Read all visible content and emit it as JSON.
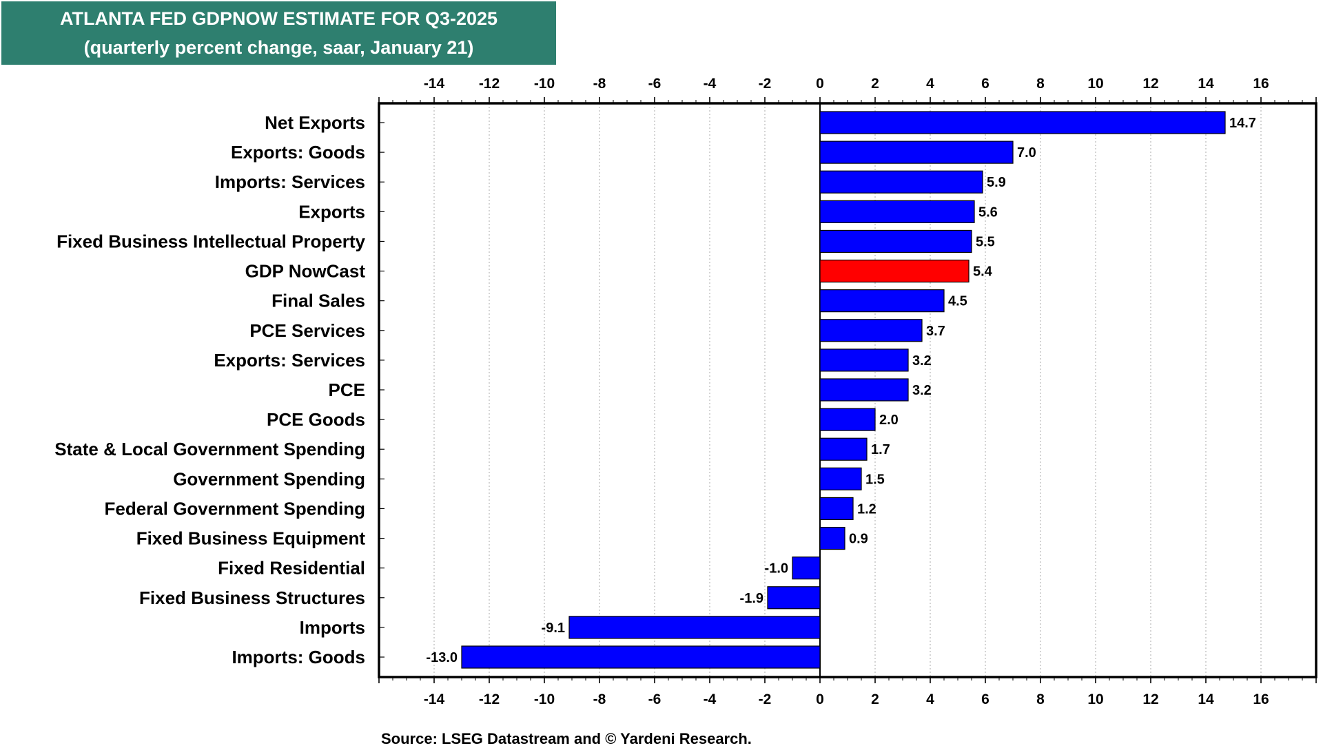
{
  "chart_data": {
    "type": "bar",
    "orientation": "horizontal",
    "title": "ATLANTA FED GDPNOW ESTIMATE FOR Q3-2025",
    "subtitle": "(quarterly percent change, saar, January 21)",
    "source": "Source: LSEG Datastream and © Yardeni Research.",
    "xlim": [
      -16,
      18
    ],
    "ticks": [
      -14,
      -12,
      -10,
      -8,
      -6,
      -4,
      -2,
      0,
      2,
      4,
      6,
      8,
      10,
      12,
      14,
      16
    ],
    "tick_labels": [
      "-14",
      "-12",
      "-10",
      "-8",
      "-6",
      "-4",
      "-2",
      "0",
      "2",
      "4",
      "6",
      "8",
      "10",
      "12",
      "14",
      "16"
    ],
    "grid": true,
    "bar_color": "#0000ff",
    "highlight_color": "#ff0000",
    "categories": [
      "Net Exports",
      "Exports: Goods",
      "Imports: Services",
      "Exports",
      "Fixed Business Intellectual Property",
      "GDP NowCast",
      "Final Sales",
      "PCE Services",
      "Exports: Services",
      "PCE",
      "PCE Goods",
      "State & Local Government Spending",
      "Government Spending",
      "Federal Government Spending",
      "Fixed Business Equipment",
      "Fixed Residential",
      "Fixed Business Structures",
      "Imports",
      "Imports: Goods"
    ],
    "values": [
      14.7,
      7.0,
      5.9,
      5.6,
      5.5,
      5.4,
      4.5,
      3.7,
      3.2,
      3.2,
      2.0,
      1.7,
      1.5,
      1.2,
      0.9,
      -1.0,
      -1.9,
      -9.1,
      -13.0
    ],
    "value_labels": [
      "14.7",
      "7.0",
      "5.9",
      "5.6",
      "5.5",
      "5.4",
      "4.5",
      "3.7",
      "3.2",
      "3.2",
      "2.0",
      "1.7",
      "1.5",
      "1.2",
      "0.9",
      "-1.0",
      "-1.9",
      "-9.1",
      "-13.0"
    ],
    "highlight": "GDP NowCast"
  }
}
